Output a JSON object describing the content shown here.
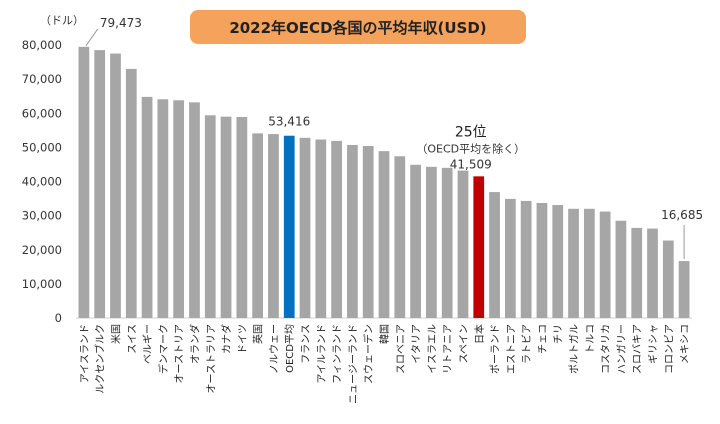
{
  "chart_data": {
    "type": "bar",
    "title": "2022年OECD各国の平均年収(USD)",
    "ylabel": "（ドル）",
    "ylim": [
      0,
      80000
    ],
    "yticks": [
      0,
      10000,
      20000,
      30000,
      40000,
      50000,
      60000,
      70000,
      80000
    ],
    "ytick_labels": [
      "0",
      "10,000",
      "20,000",
      "30,000",
      "40,000",
      "50,000",
      "60,000",
      "70,000",
      "80,000"
    ],
    "categories": [
      "アイスランド",
      "ルクセンブルク",
      "米国",
      "スイス",
      "ベルギー",
      "デンマーク",
      "オーストリア",
      "オランダ",
      "オーストラリア",
      "カナダ",
      "ドイツ",
      "英国",
      "ノルウェー",
      "OECD平均",
      "フランス",
      "アイルランド",
      "フィンランド",
      "ニュージーランド",
      "スウェーデン",
      "韓国",
      "スロベニア",
      "イタリア",
      "イスラエル",
      "リトアニア",
      "スペイン",
      "日本",
      "ポーランド",
      "エストニア",
      "ラトビア",
      "チェコ",
      "チリ",
      "ポルトガル",
      "トルコ",
      "コスタリカ",
      "ハンガリー",
      "スロバキア",
      "ギリシャ",
      "コロンビア",
      "メキシコ"
    ],
    "values": [
      79473,
      78500,
      77500,
      73000,
      64800,
      64100,
      63800,
      63200,
      59400,
      59000,
      58900,
      54100,
      53900,
      53416,
      52800,
      52300,
      51900,
      50700,
      50400,
      48900,
      47400,
      44900,
      44300,
      44000,
      43200,
      41509,
      36900,
      34900,
      34300,
      33700,
      33100,
      32000,
      32000,
      31200,
      28500,
      26400,
      26200,
      22700,
      16685
    ],
    "colors": {
      "default": "#a6a6a6",
      "OECD平均": "#0070c0",
      "日本": "#c00000"
    },
    "annotations": [
      {
        "category": "アイスランド",
        "text": "79,473"
      },
      {
        "category": "OECD平均",
        "text": "53,416"
      },
      {
        "category": "日本",
        "text": "41,509",
        "rank": "25位",
        "note": "（OECD平均を除く）"
      },
      {
        "category": "メキシコ",
        "text": "16,685"
      }
    ],
    "grid": false,
    "legend": "none"
  }
}
